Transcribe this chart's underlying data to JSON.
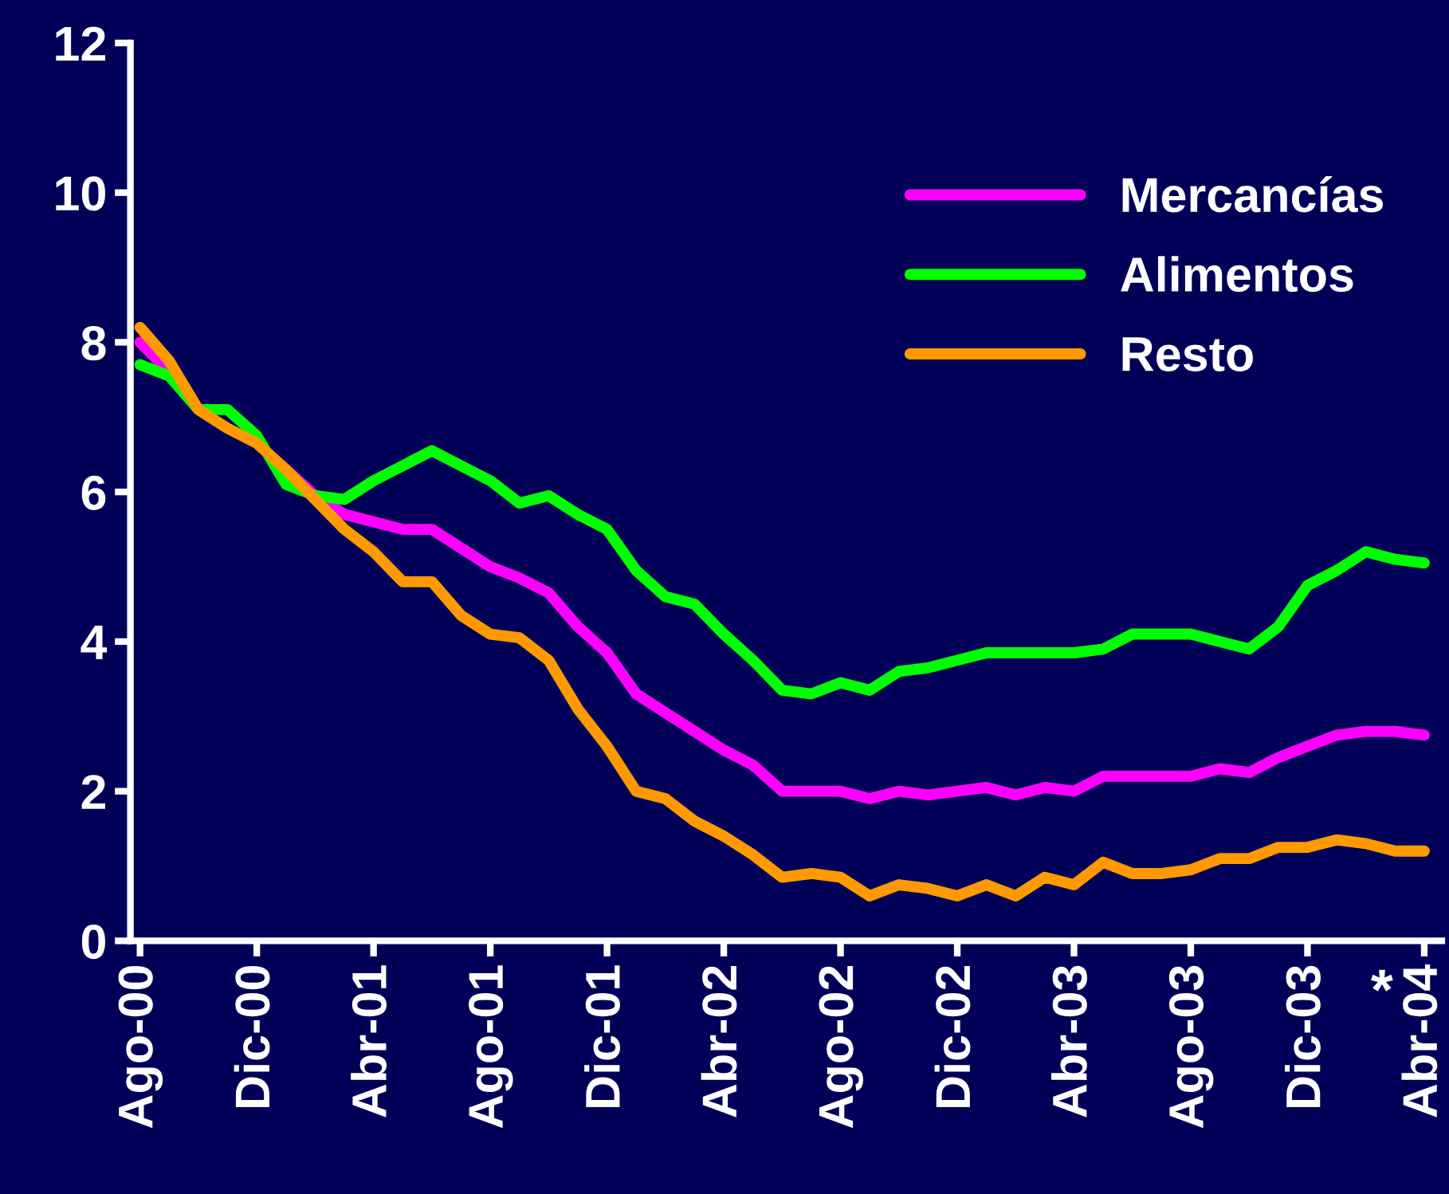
{
  "chart_data": {
    "type": "line",
    "categories": [
      "Ago-00",
      null,
      null,
      null,
      "Dic-00",
      null,
      null,
      null,
      "Abr-01",
      null,
      null,
      null,
      "Ago-01",
      null,
      null,
      null,
      "Dic-01",
      null,
      null,
      null,
      "Abr-02",
      null,
      null,
      null,
      "Ago-02",
      null,
      null,
      null,
      "Dic-02",
      null,
      null,
      null,
      "Abr-03",
      null,
      null,
      null,
      "Ago-03",
      null,
      null,
      null,
      "Dic-03",
      null,
      null,
      null,
      "Abr-04"
    ],
    "series": [
      {
        "name": "Mercancías",
        "color": "#ff00ff",
        "values": [
          8.0,
          7.6,
          null,
          null,
          null,
          6.3,
          5.95,
          5.7,
          5.6,
          5.5,
          5.5,
          5.25,
          5.0,
          4.85,
          4.65,
          4.2,
          3.85,
          3.3,
          3.05,
          2.8,
          2.55,
          2.35,
          2.0,
          2.0,
          2.0,
          1.9,
          2.0,
          1.95,
          2.0,
          2.05,
          1.95,
          2.05,
          2.0,
          2.2,
          2.2,
          2.2,
          2.2,
          2.3,
          2.25,
          2.45,
          2.6,
          2.75,
          2.8,
          2.8,
          2.75
        ]
      },
      {
        "name": "Alimentos",
        "color": "#00ff00",
        "values": [
          7.7,
          7.55,
          7.1,
          7.1,
          6.75,
          6.1,
          5.95,
          5.9,
          6.15,
          6.35,
          6.55,
          6.35,
          6.15,
          5.85,
          5.95,
          5.7,
          5.5,
          4.95,
          4.6,
          4.5,
          4.1,
          3.75,
          3.35,
          3.3,
          3.45,
          3.35,
          3.6,
          3.65,
          3.75,
          3.85,
          3.85,
          3.85,
          3.85,
          3.9,
          4.1,
          4.1,
          4.1,
          4.0,
          3.9,
          4.2,
          4.75,
          4.95,
          5.2,
          5.1,
          5.05
        ]
      },
      {
        "name": "Resto",
        "color": "#ff9900",
        "values": [
          8.2,
          7.75,
          7.1,
          6.85,
          6.65,
          6.3,
          5.9,
          5.5,
          5.2,
          4.8,
          4.8,
          4.35,
          4.1,
          4.05,
          3.75,
          3.1,
          2.6,
          2.0,
          1.9,
          1.6,
          1.4,
          1.15,
          0.85,
          0.9,
          0.85,
          0.6,
          0.75,
          0.7,
          0.6,
          0.75,
          0.6,
          0.85,
          0.75,
          1.05,
          0.9,
          0.9,
          0.95,
          1.1,
          1.1,
          1.25,
          1.25,
          1.35,
          1.3,
          1.2,
          1.2
        ]
      }
    ],
    "ylim": [
      0,
      12
    ],
    "yticks": [
      0,
      2,
      4,
      6,
      8,
      10,
      12
    ],
    "annotations": [
      "*"
    ],
    "legend": "top right",
    "grid": false,
    "marker": "none",
    "line_style": "solid"
  }
}
